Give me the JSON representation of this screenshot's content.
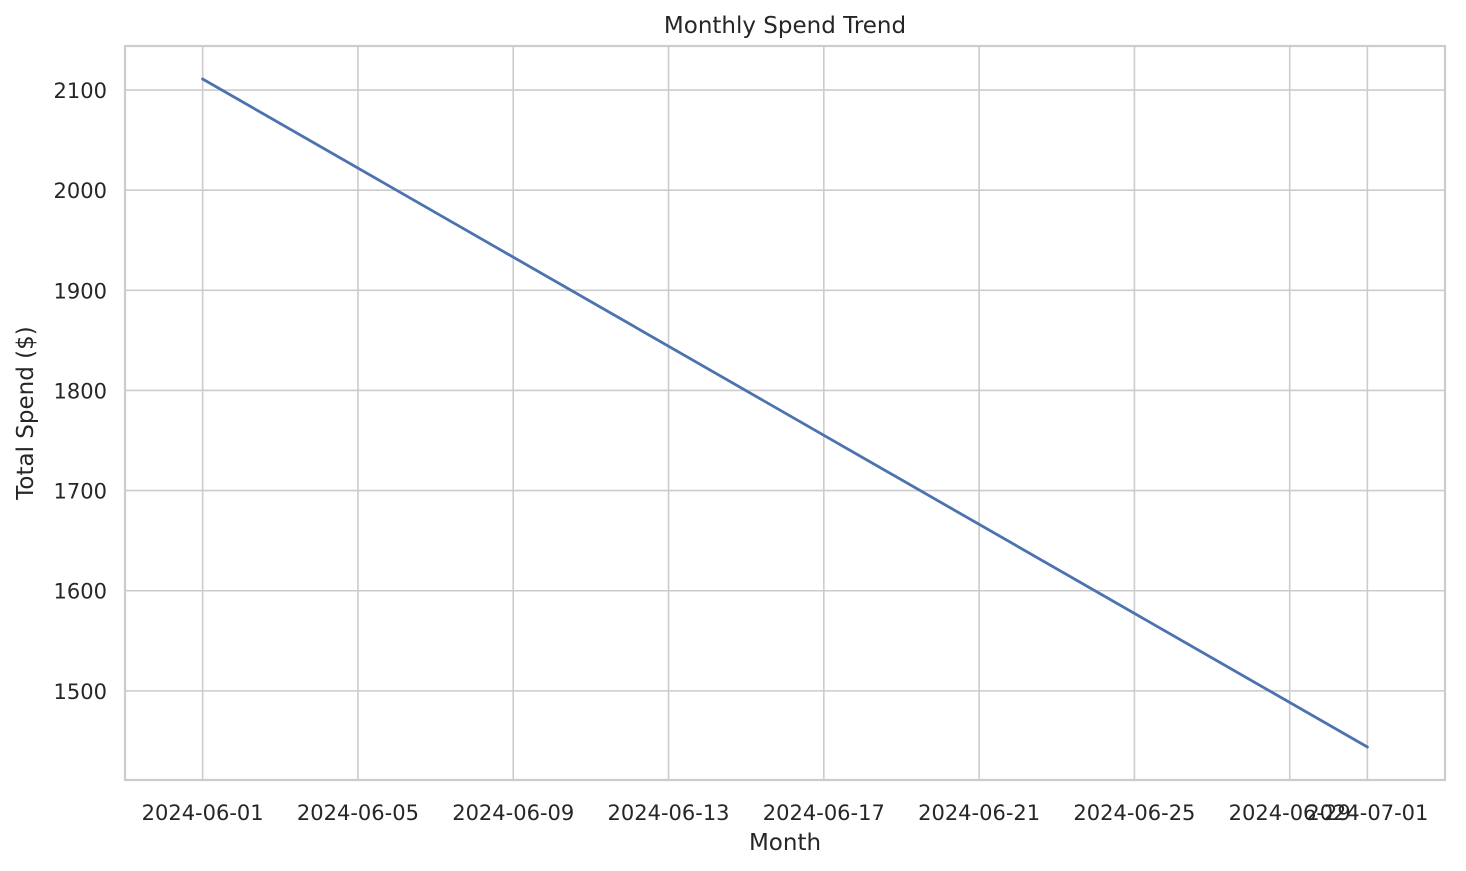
{
  "chart_data": {
    "type": "line",
    "title": "Monthly Spend Trend",
    "xlabel": "Month",
    "ylabel": "Total Spend ($)",
    "x": [
      "2024-06-01",
      "2024-07-01"
    ],
    "series": [
      {
        "values": [
          2111,
          1444
        ],
        "color": "#4c72b0"
      }
    ],
    "xticks": [
      "2024-06-01",
      "2024-06-05",
      "2024-06-09",
      "2024-06-13",
      "2024-06-17",
      "2024-06-21",
      "2024-06-25",
      "2024-06-29",
      "2024-07-01"
    ],
    "yticks": [
      1500,
      1600,
      1700,
      1800,
      1900,
      2000,
      2100
    ],
    "xlim": [
      "2024-05-30",
      "2024-07-03"
    ],
    "ylim": [
      1411,
      2144
    ],
    "grid": true,
    "legend": "none"
  }
}
